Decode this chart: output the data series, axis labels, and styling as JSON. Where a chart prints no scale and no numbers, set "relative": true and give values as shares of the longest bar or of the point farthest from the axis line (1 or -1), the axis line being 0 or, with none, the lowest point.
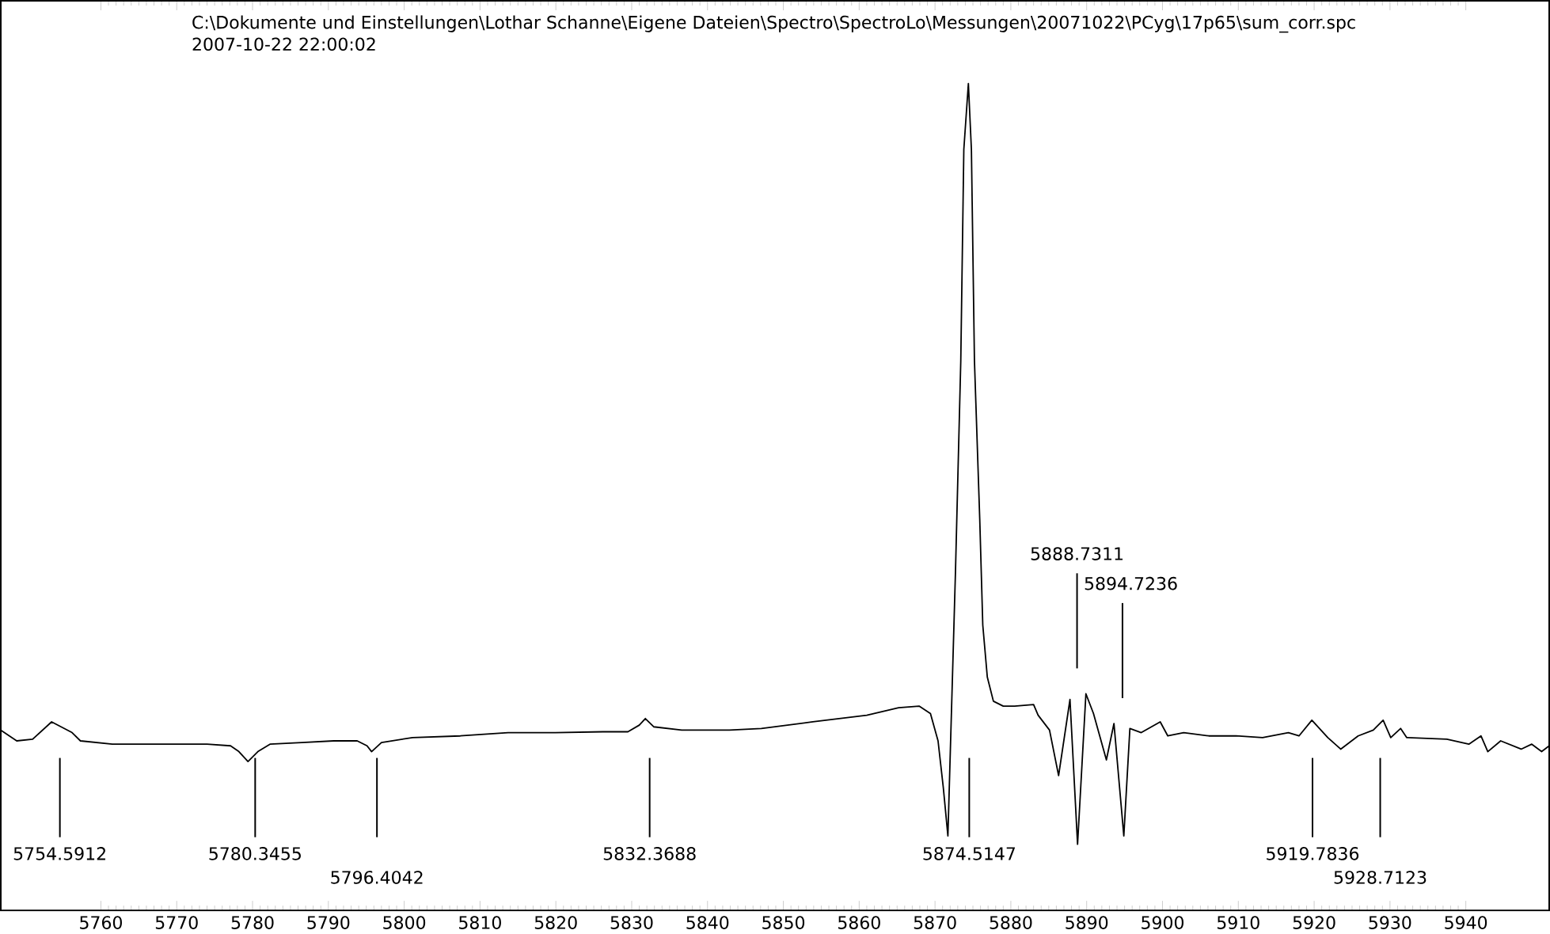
{
  "chart_data": {
    "type": "line",
    "relative": true,
    "color": "#000000",
    "title": "C:\\Dokumente und Einstellungen\\Lothar Schanne\\Eigene Dateien\\Spectro\\SpectroLo\\Messungen\\20071022\\PCyg\\17p65\\sum_corr.spc",
    "subtitle": "2007-10-22 22:00:02",
    "xlim": [
      5746.8,
      5951
    ],
    "xticks": [
      5760,
      5770,
      5780,
      5790,
      5800,
      5810,
      5820,
      5830,
      5840,
      5850,
      5860,
      5870,
      5880,
      5890,
      5900,
      5910,
      5920,
      5930,
      5940
    ],
    "x": [
      5746.8,
      5748.9,
      5751.0,
      5753.5,
      5756.2,
      5757.3,
      5761.5,
      5765.6,
      5769.8,
      5774.0,
      5777.1,
      5778.2,
      5779.4,
      5780.7,
      5782.3,
      5786.5,
      5790.7,
      5793.8,
      5795.1,
      5795.7,
      5797.0,
      5801.1,
      5807.4,
      5813.7,
      5819.9,
      5826.2,
      5829.5,
      5831.0,
      5831.8,
      5832.9,
      5836.6,
      5842.9,
      5847.1,
      5853.9,
      5861.0,
      5865.2,
      5867.9,
      5869.4,
      5870.4,
      5871.1,
      5871.7,
      5872.7,
      5873.4,
      5873.8,
      5874.4,
      5874.8,
      5875.2,
      5875.9,
      5876.3,
      5876.9,
      5877.7,
      5879.0,
      5880.5,
      5883.0,
      5883.6,
      5885.1,
      5886.3,
      5887.8,
      5888.8,
      5889.9,
      5890.9,
      5892.6,
      5893.6,
      5894.9,
      5895.7,
      5897.2,
      5899.7,
      5900.7,
      5902.8,
      5906.1,
      5909.7,
      5913.2,
      5916.6,
      5918.0,
      5919.7,
      5921.8,
      5923.5,
      5925.8,
      5927.8,
      5929.1,
      5930.1,
      5931.4,
      5932.2,
      5937.5,
      5940.4,
      5942.0,
      5942.9,
      5944.6,
      5947.3,
      5948.7,
      5950.0,
      5951.0
    ],
    "values": [
      0.218,
      0.205,
      0.207,
      0.228,
      0.215,
      0.205,
      0.201,
      0.201,
      0.201,
      0.201,
      0.199,
      0.192,
      0.18,
      0.192,
      0.201,
      0.203,
      0.205,
      0.205,
      0.199,
      0.192,
      0.203,
      0.209,
      0.211,
      0.215,
      0.215,
      0.216,
      0.216,
      0.224,
      0.232,
      0.222,
      0.218,
      0.218,
      0.22,
      0.228,
      0.236,
      0.245,
      0.247,
      0.238,
      0.205,
      0.148,
      0.09,
      0.41,
      0.665,
      0.92,
      1.0,
      0.92,
      0.665,
      0.473,
      0.345,
      0.282,
      0.253,
      0.247,
      0.247,
      0.249,
      0.236,
      0.218,
      0.163,
      0.255,
      0.08,
      0.262,
      0.238,
      0.182,
      0.226,
      0.09,
      0.22,
      0.215,
      0.228,
      0.211,
      0.215,
      0.211,
      0.211,
      0.209,
      0.215,
      0.211,
      0.23,
      0.209,
      0.195,
      0.211,
      0.218,
      0.23,
      0.209,
      0.22,
      0.209,
      0.207,
      0.201,
      0.211,
      0.192,
      0.205,
      0.195,
      0.201,
      0.192,
      0.199
    ],
    "ref_lines": [
      {
        "axis": "x",
        "value": 5754.5912,
        "label": "5754.5912"
      },
      {
        "axis": "x",
        "value": 5780.3455,
        "label": "5780.3455"
      },
      {
        "axis": "x",
        "value": 5796.4042,
        "label": "5796.4042"
      },
      {
        "axis": "x",
        "value": 5832.3688,
        "label": "5832.3688"
      },
      {
        "axis": "x",
        "value": 5874.5147,
        "label": "5874.5147"
      },
      {
        "axis": "x",
        "value": 5888.7311,
        "label": "5888.7311"
      },
      {
        "axis": "x",
        "value": 5894.7236,
        "label": "5894.7236"
      },
      {
        "axis": "x",
        "value": 5919.7836,
        "label": "5919.7836"
      },
      {
        "axis": "x",
        "value": 5928.7123,
        "label": "5928.7123"
      }
    ]
  }
}
